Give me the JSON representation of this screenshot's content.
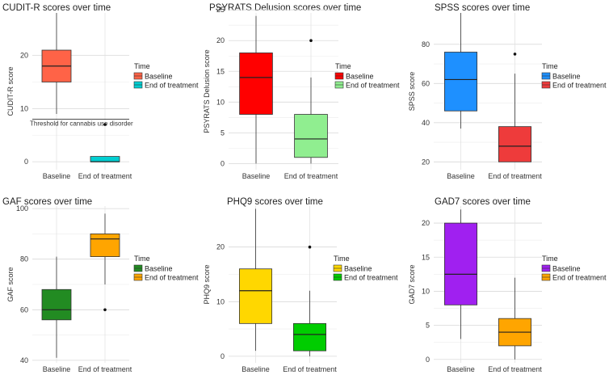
{
  "chart_data": [
    {
      "type": "box",
      "title": "CUDIT-R scores over time",
      "xlabel": "",
      "ylabel": "CUDIT-R score",
      "ylim": [
        -1.5,
        28
      ],
      "yticks": [
        0,
        10,
        20
      ],
      "categories": [
        "Baseline",
        "End of treatment"
      ],
      "colors": [
        "#ff6347",
        "#00ced1"
      ],
      "boxes": [
        {
          "min": 9,
          "q1": 15,
          "median": 18,
          "q3": 21,
          "max": 28,
          "outliers": []
        },
        {
          "min": 0,
          "q1": 0,
          "median": 0,
          "q3": 1,
          "max": 1,
          "outliers": [
            7
          ]
        }
      ],
      "reference_line": {
        "value": 8,
        "label": "Threshold for cannabis use disorder"
      },
      "legend": {
        "title": "Time",
        "labels": [
          "Baseline",
          "End of treatment"
        ]
      }
    },
    {
      "type": "box",
      "title": "PSYRATS Delusion scores over time",
      "xlabel": "",
      "ylabel": "PSYRATS Delusion score",
      "ylim": [
        -1,
        24.5
      ],
      "yticks": [
        0,
        5,
        10,
        15,
        20,
        25
      ],
      "categories": [
        "Baseline",
        "End of treatment"
      ],
      "colors": [
        "#ff0000",
        "#90ee90"
      ],
      "boxes": [
        {
          "min": 0,
          "q1": 8,
          "median": 14,
          "q3": 18,
          "max": 24,
          "outliers": []
        },
        {
          "min": 0,
          "q1": 1,
          "median": 4,
          "q3": 8,
          "max": 14,
          "outliers": [
            20
          ]
        }
      ],
      "legend": {
        "title": "Time",
        "labels": [
          "Baseline",
          "End of treatment"
        ]
      }
    },
    {
      "type": "box",
      "title": "SPSS scores over time",
      "xlabel": "",
      "ylabel": "SPSS score",
      "ylim": [
        16,
        96
      ],
      "yticks": [
        20,
        40,
        60,
        80
      ],
      "categories": [
        "Baseline",
        "End of treatment"
      ],
      "colors": [
        "#1e90ff",
        "#ee3b3b"
      ],
      "boxes": [
        {
          "min": 37,
          "q1": 46,
          "median": 62,
          "q3": 76,
          "max": 96,
          "outliers": []
        },
        {
          "min": 20,
          "q1": 20,
          "median": 28,
          "q3": 38,
          "max": 65,
          "outliers": [
            75
          ]
        }
      ],
      "legend": {
        "title": "Time",
        "labels": [
          "Baseline",
          "End of treatment"
        ]
      }
    },
    {
      "type": "box",
      "title": "GAF scores over time",
      "xlabel": "",
      "ylabel": "GAF score",
      "ylim": [
        39,
        101
      ],
      "yticks": [
        40,
        60,
        80,
        100
      ],
      "categories": [
        "Baseline",
        "End of treatment"
      ],
      "colors": [
        "#228b22",
        "#ffa500"
      ],
      "boxes": [
        {
          "min": 41,
          "q1": 56,
          "median": 60,
          "q3": 68,
          "max": 81,
          "outliers": []
        },
        {
          "min": 70,
          "q1": 81,
          "median": 88,
          "q3": 90,
          "max": 98,
          "outliers": [
            60
          ]
        }
      ],
      "legend": {
        "title": "Time",
        "labels": [
          "Baseline",
          "End of treatment"
        ]
      }
    },
    {
      "type": "box",
      "title": "PHQ9 scores over time",
      "xlabel": "",
      "ylabel": "PHQ9 score",
      "ylim": [
        -1.2,
        27.5
      ],
      "yticks": [
        0,
        10,
        20
      ],
      "categories": [
        "Baseline",
        "End of treatment"
      ],
      "colors": [
        "#ffd700",
        "#00cd00"
      ],
      "boxes": [
        {
          "min": 1,
          "q1": 6,
          "median": 12,
          "q3": 16,
          "max": 27,
          "outliers": []
        },
        {
          "min": 0,
          "q1": 1,
          "median": 4,
          "q3": 6,
          "max": 12,
          "outliers": [
            20
          ]
        }
      ],
      "legend": {
        "title": "Time",
        "labels": [
          "Baseline",
          "End of treatment"
        ]
      }
    },
    {
      "type": "box",
      "title": "GAD7 scores over time",
      "xlabel": "",
      "ylabel": "GAD7 score",
      "ylim": [
        -0.5,
        22.5
      ],
      "yticks": [
        0,
        5,
        10,
        15,
        20
      ],
      "categories": [
        "Baseline",
        "End of treatment"
      ],
      "colors": [
        "#a020f0",
        "#ffa500"
      ],
      "boxes": [
        {
          "min": 3,
          "q1": 8,
          "median": 12.5,
          "q3": 20,
          "max": 22,
          "outliers": []
        },
        {
          "min": 0,
          "q1": 2,
          "median": 4,
          "q3": 6,
          "max": 12,
          "outliers": []
        }
      ],
      "legend": {
        "title": "Time",
        "labels": [
          "Baseline",
          "End of treatment"
        ]
      }
    }
  ]
}
